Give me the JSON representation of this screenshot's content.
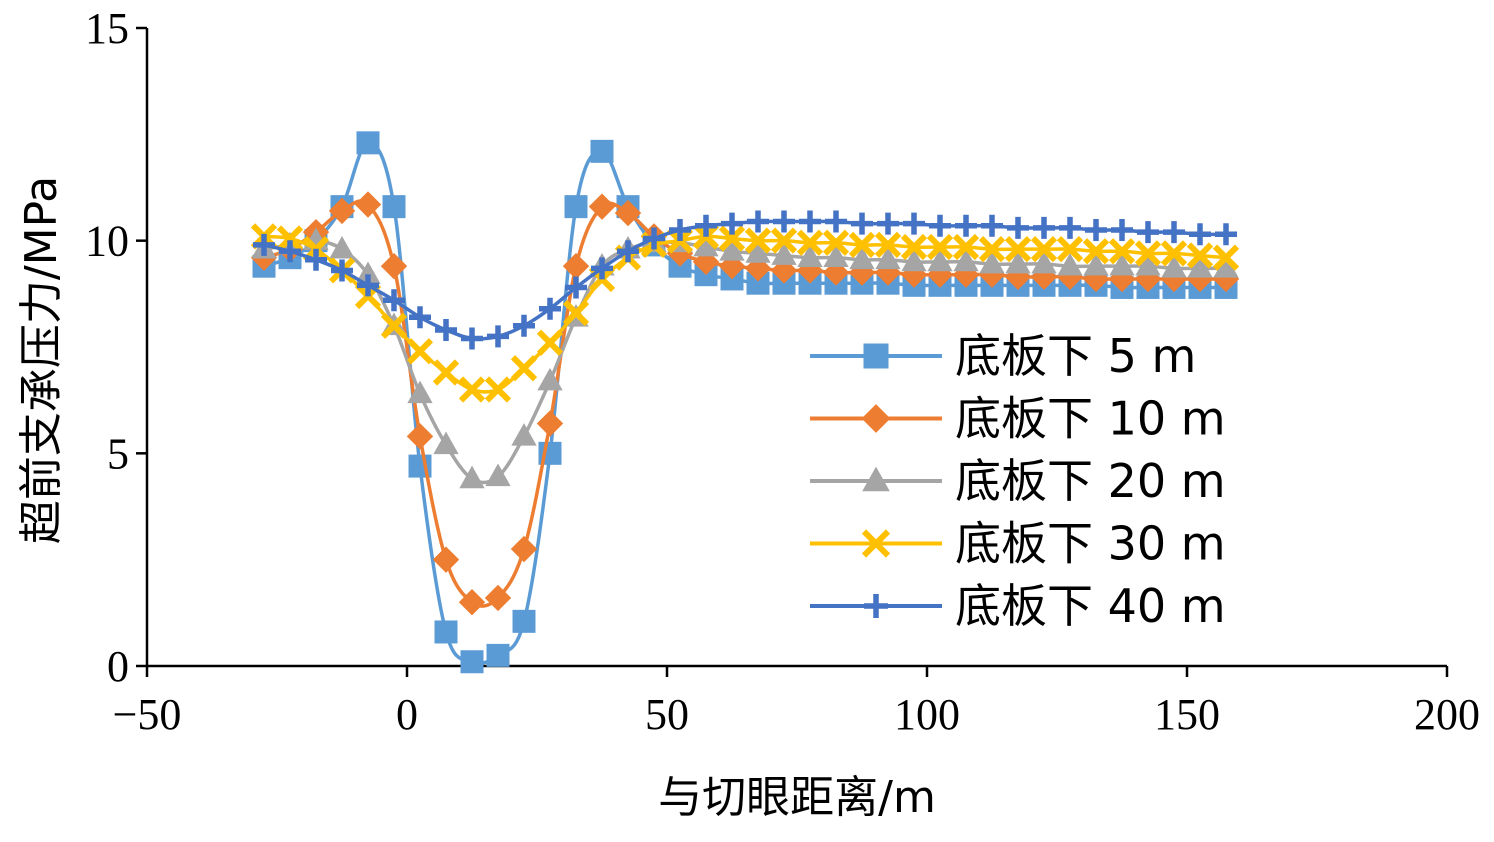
{
  "chart_data": {
    "type": "line",
    "xlabel": "与切眼距离/m",
    "ylabel": "超前支承压力/MPa",
    "xlim": [
      -50,
      200
    ],
    "ylim": [
      0,
      15
    ],
    "x_ticks": [
      -50,
      0,
      50,
      100,
      150,
      200
    ],
    "y_ticks": [
      0,
      5,
      10,
      15
    ],
    "x_tick_labels": [
      "−50",
      "0",
      "50",
      "100",
      "150",
      "200"
    ],
    "y_tick_labels": [
      "0",
      "5",
      "10",
      "15"
    ],
    "grid": false,
    "legend_position": "right-center",
    "x": [
      -27.5,
      -22.5,
      -17.5,
      -12.5,
      -7.5,
      -2.5,
      2.5,
      7.5,
      12.5,
      17.5,
      22.5,
      27.5,
      32.5,
      37.5,
      42.5,
      47.5,
      52.5,
      57.5,
      62.5,
      67.5,
      72.5,
      77.5,
      82.5,
      87.5,
      92.5,
      97.5,
      102.5,
      107.5,
      112.5,
      117.5,
      122.5,
      127.5,
      132.5,
      137.5,
      142.5,
      147.5,
      152.5,
      157.5
    ],
    "series": [
      {
        "name": "底板下 5 m",
        "color": "#5B9BD5",
        "marker": "square",
        "values": [
          9.4,
          9.6,
          10.0,
          10.8,
          12.3,
          10.8,
          4.7,
          0.8,
          0.1,
          0.25,
          1.05,
          5.0,
          10.8,
          12.1,
          10.8,
          9.9,
          9.4,
          9.2,
          9.1,
          9.0,
          9.0,
          9.0,
          9.0,
          9.0,
          9.0,
          8.95,
          8.95,
          8.95,
          8.95,
          8.95,
          8.95,
          8.95,
          8.95,
          8.9,
          8.9,
          8.9,
          8.9,
          8.9
        ]
      },
      {
        "name": "底板下 10 m",
        "color": "#ED7D31",
        "marker": "diamond",
        "values": [
          9.6,
          9.8,
          10.2,
          10.7,
          10.85,
          9.4,
          5.4,
          2.5,
          1.5,
          1.6,
          2.75,
          5.7,
          9.4,
          10.8,
          10.65,
          10.1,
          9.7,
          9.5,
          9.4,
          9.35,
          9.3,
          9.3,
          9.25,
          9.25,
          9.25,
          9.2,
          9.2,
          9.2,
          9.2,
          9.15,
          9.15,
          9.15,
          9.1,
          9.1,
          9.1,
          9.1,
          9.1,
          9.1
        ]
      },
      {
        "name": "底板下 20 m",
        "color": "#A5A5A5",
        "marker": "triangle",
        "values": [
          9.8,
          9.9,
          10.0,
          9.8,
          9.2,
          8.0,
          6.4,
          5.2,
          4.4,
          4.45,
          5.4,
          6.7,
          8.2,
          9.4,
          9.8,
          9.95,
          9.95,
          9.85,
          9.75,
          9.7,
          9.65,
          9.6,
          9.6,
          9.55,
          9.55,
          9.5,
          9.5,
          9.5,
          9.45,
          9.45,
          9.45,
          9.4,
          9.4,
          9.4,
          9.4,
          9.35,
          9.35,
          9.35
        ]
      },
      {
        "name": "底板下 30 m",
        "color": "#FFC000",
        "marker": "x",
        "values": [
          10.1,
          10.05,
          9.8,
          9.3,
          8.7,
          8.0,
          7.4,
          6.9,
          6.5,
          6.5,
          7.0,
          7.6,
          8.3,
          9.1,
          9.6,
          9.9,
          10.0,
          10.1,
          10.05,
          10.0,
          10.0,
          9.95,
          9.95,
          9.9,
          9.9,
          9.85,
          9.85,
          9.85,
          9.8,
          9.8,
          9.8,
          9.8,
          9.75,
          9.75,
          9.7,
          9.7,
          9.65,
          9.6
        ]
      },
      {
        "name": "底板下 40 m",
        "color": "#4472C4",
        "marker": "plus",
        "values": [
          9.9,
          9.75,
          9.55,
          9.3,
          8.95,
          8.6,
          8.2,
          7.9,
          7.7,
          7.75,
          8.0,
          8.4,
          8.9,
          9.35,
          9.75,
          10.05,
          10.25,
          10.35,
          10.4,
          10.45,
          10.45,
          10.45,
          10.45,
          10.4,
          10.4,
          10.4,
          10.35,
          10.35,
          10.35,
          10.3,
          10.3,
          10.3,
          10.25,
          10.25,
          10.2,
          10.2,
          10.15,
          10.15
        ]
      }
    ]
  }
}
